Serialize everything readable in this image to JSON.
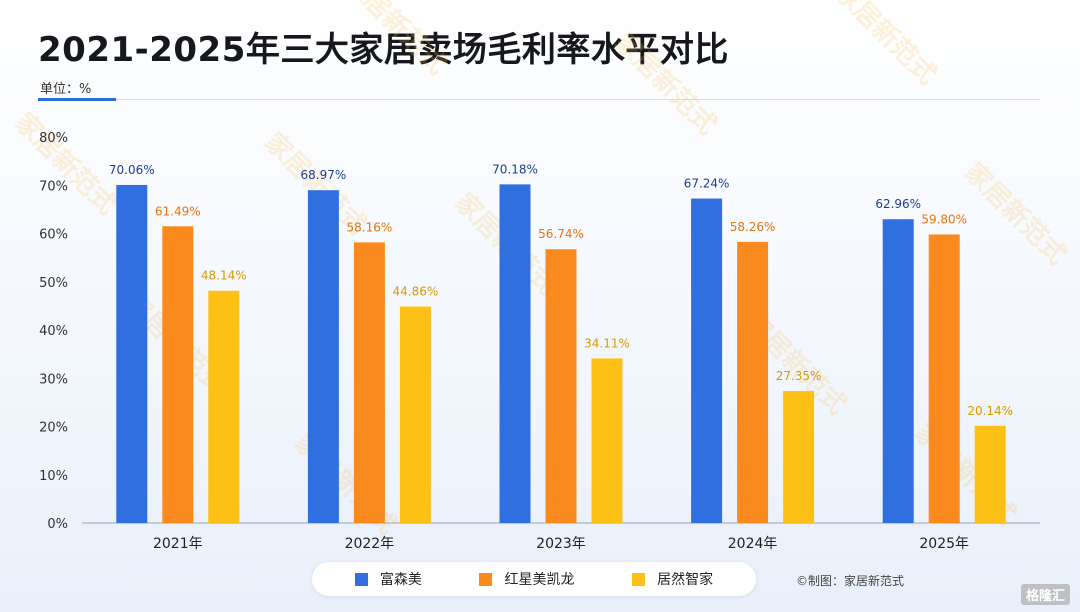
{
  "title": "2021-2025年三大家居卖场毛利率水平对比",
  "unit_label": "单位：%",
  "credit": "©制图：家居新范式",
  "watermark": "家居新范式 HOFUR",
  "corner_logo": "格隆汇",
  "colors": {
    "富森美": "#2f6fdf",
    "红星美凯龙": "#fa8a1e",
    "居然智家": "#fdc014"
  },
  "chart_data": {
    "type": "bar",
    "title": "2021-2025年三大家居卖场毛利率水平对比",
    "xlabel": "",
    "ylabel": "单位：%",
    "ylim": [
      0,
      80
    ],
    "yticks": [
      "0%",
      "10%",
      "20%",
      "30%",
      "40%",
      "50%",
      "60%",
      "70%",
      "80%"
    ],
    "categories": [
      "2021年",
      "2022年",
      "2023年",
      "2024年",
      "2025年"
    ],
    "series": [
      {
        "name": "富森美",
        "values": [
          70.06,
          68.97,
          70.18,
          67.24,
          62.96
        ],
        "labels": [
          "70.06%",
          "68.97%",
          "70.18%",
          "67.24%",
          "62.96%"
        ]
      },
      {
        "name": "红星美凯龙",
        "values": [
          61.49,
          58.16,
          56.74,
          58.26,
          59.8
        ],
        "labels": [
          "61.49%",
          "58.16%",
          "56.74%",
          "58.26%",
          "59.80%"
        ]
      },
      {
        "name": "居然智家",
        "values": [
          48.14,
          44.86,
          34.11,
          27.35,
          20.14
        ],
        "labels": [
          "48.14%",
          "44.86%",
          "34.11%",
          "27.35%",
          "20.14%"
        ]
      }
    ],
    "legend_position": "bottom",
    "grid": false
  }
}
